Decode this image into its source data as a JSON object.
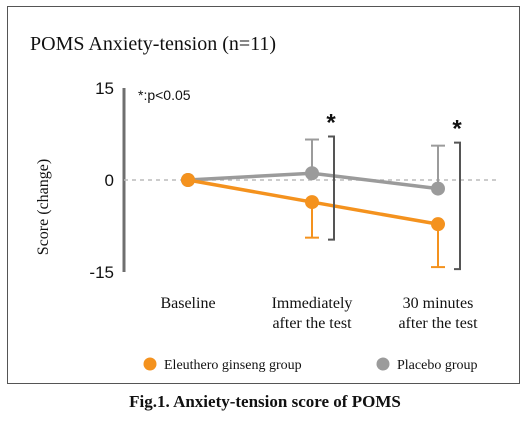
{
  "chart_data": {
    "type": "line",
    "title": "POMS Anxiety-tension (n=11)",
    "ylabel": "Score (change)",
    "xlabel": "",
    "categories": [
      "Baseline",
      "Immediately after the test",
      "30 minutes after the test"
    ],
    "category_lines": [
      [
        "Baseline"
      ],
      [
        "Immediately",
        "after the test"
      ],
      [
        "30 minutes",
        "after the test"
      ]
    ],
    "yticks": [
      15,
      0,
      -15
    ],
    "ylim": [
      -15,
      15
    ],
    "zero_gridline": true,
    "significance_note": "*:p<0.05",
    "significance_marks": [
      "*",
      "*"
    ],
    "series": [
      {
        "name": "Eleuthero ginseng group",
        "color": "#f4921e",
        "values": [
          0,
          -3.6,
          -7.2
        ],
        "error_lower": [
          0,
          5.8,
          7
        ],
        "error_upper": [
          0,
          0,
          0
        ]
      },
      {
        "name": "Placebo group",
        "color": "#9b9b9b",
        "values": [
          0,
          1.1,
          -1.4
        ],
        "error_lower": [
          0,
          0,
          0
        ],
        "error_upper": [
          0,
          5.5,
          7
        ]
      }
    ],
    "legend_position": "bottom"
  },
  "caption": "Fig.1. Anxiety-tension score of POMS"
}
